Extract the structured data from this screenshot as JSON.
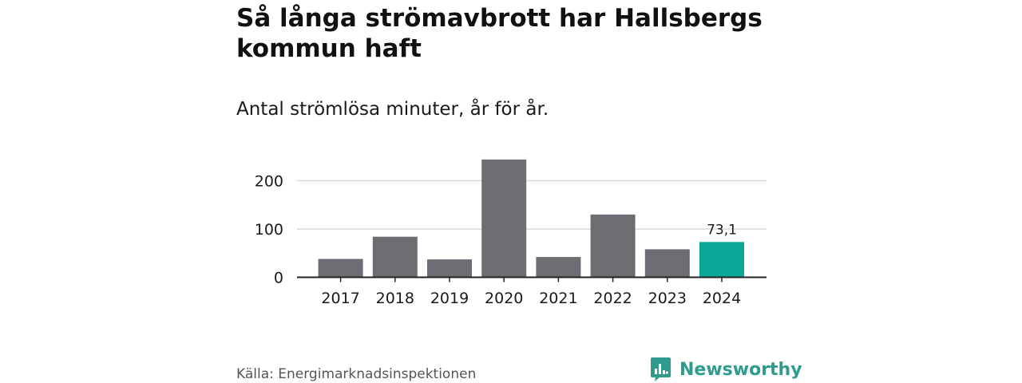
{
  "title": "Så långa strömavbrott har Hallsbergs kommun haft",
  "subtitle": "Antal strömlösa minuter, år för år.",
  "source": "Källa: Energimarknadsinspektionen",
  "brand": {
    "name": "Newsworthy",
    "icon": "newsworthy-logo-icon",
    "color": "#2e9b8e"
  },
  "colors": {
    "bar": "#6d6c72",
    "highlight": "#0aa99a",
    "grid": "#d9d9d9",
    "axis": "#222222"
  },
  "chart_data": {
    "type": "bar",
    "title": "Så långa strömavbrott har Hallsbergs kommun haft",
    "subtitle": "Antal strömlösa minuter, år för år.",
    "xlabel": "",
    "ylabel": "",
    "categories": [
      "2017",
      "2018",
      "2019",
      "2020",
      "2021",
      "2022",
      "2023",
      "2024"
    ],
    "values": [
      38,
      84,
      37,
      244,
      42,
      130,
      58,
      73.1
    ],
    "highlight_index": 7,
    "data_labels": [
      {
        "index": 7,
        "text": "73,1"
      }
    ],
    "ylim": [
      0,
      260
    ],
    "yticks": [
      0,
      100,
      200
    ],
    "ytick_labels": [
      "0",
      "100",
      "200"
    ],
    "grid": true,
    "legend": "none"
  }
}
